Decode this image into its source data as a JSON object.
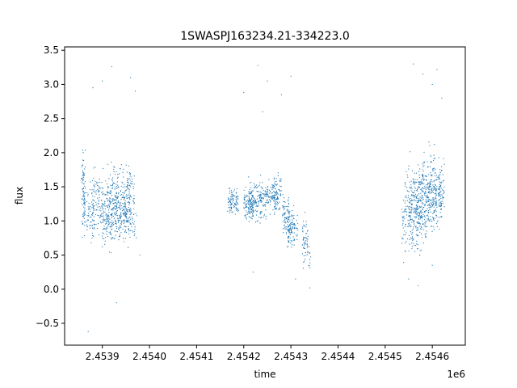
{
  "chart_data": {
    "type": "scatter",
    "title": "1SWASPJ163234.21-334223.0",
    "xlabel": "time",
    "ylabel": "flux",
    "x_offset_label": "1e6",
    "xlim": [
      2.45382,
      2.45467
    ],
    "ylim": [
      -0.82,
      3.55
    ],
    "xticks": [
      2.4539,
      2.454,
      2.4541,
      2.4542,
      2.4543,
      2.4544,
      2.4545,
      2.4546
    ],
    "xtick_labels": [
      "2.4539",
      "2.4540",
      "2.4541",
      "2.4542",
      "2.4543",
      "2.4544",
      "2.4545",
      "2.4546"
    ],
    "yticks": [
      -0.5,
      0.0,
      0.5,
      1.0,
      1.5,
      2.0,
      2.5,
      3.0,
      3.5
    ],
    "ytick_labels": [
      "−0.5",
      "0.0",
      "0.5",
      "1.0",
      "1.5",
      "2.0",
      "2.5",
      "3.0",
      "3.5"
    ],
    "grid": false,
    "legend": "none",
    "marker_color": "#1f77b4",
    "series": [
      {
        "clusters": [
          {
            "x": 2.45386,
            "y": 1.4,
            "dx": 4e-06,
            "dy": 0.55,
            "n": 90
          },
          {
            "x": 2.453875,
            "y": 1.1,
            "dx": 8e-06,
            "dy": 0.4,
            "n": 60
          },
          {
            "x": 2.45389,
            "y": 1.3,
            "dx": 1.2e-05,
            "dy": 0.45,
            "n": 100
          },
          {
            "x": 2.45391,
            "y": 1.05,
            "dx": 1e-05,
            "dy": 0.4,
            "n": 110
          },
          {
            "x": 2.45392,
            "y": 1.3,
            "dx": 1e-05,
            "dy": 0.5,
            "n": 100
          },
          {
            "x": 2.45393,
            "y": 1.1,
            "dx": 1e-05,
            "dy": 0.5,
            "n": 80
          },
          {
            "x": 2.45394,
            "y": 1.2,
            "dx": 1.2e-05,
            "dy": 0.45,
            "n": 90
          },
          {
            "x": 2.45395,
            "y": 1.2,
            "dx": 1e-05,
            "dy": 0.5,
            "n": 90
          },
          {
            "x": 2.45396,
            "y": 1.3,
            "dx": 8e-06,
            "dy": 0.45,
            "n": 80
          },
          {
            "x": 2.45397,
            "y": 0.9,
            "dx": 5e-06,
            "dy": 0.2,
            "n": 10
          },
          {
            "x": 2.45417,
            "y": 1.3,
            "dx": 5e-06,
            "dy": 0.15,
            "n": 30
          },
          {
            "x": 2.45418,
            "y": 1.3,
            "dx": 1e-05,
            "dy": 0.2,
            "n": 70
          },
          {
            "x": 2.45421,
            "y": 1.25,
            "dx": 1e-05,
            "dy": 0.25,
            "n": 110
          },
          {
            "x": 2.45422,
            "y": 1.3,
            "dx": 1e-05,
            "dy": 0.3,
            "n": 90
          },
          {
            "x": 2.45424,
            "y": 1.3,
            "dx": 1e-05,
            "dy": 0.25,
            "n": 90
          },
          {
            "x": 2.45426,
            "y": 1.35,
            "dx": 1e-05,
            "dy": 0.2,
            "n": 60
          },
          {
            "x": 2.45427,
            "y": 1.4,
            "dx": 1e-05,
            "dy": 0.25,
            "n": 90
          },
          {
            "x": 2.45429,
            "y": 1.1,
            "dx": 8e-06,
            "dy": 0.3,
            "n": 80
          },
          {
            "x": 2.4543,
            "y": 0.85,
            "dx": 8e-06,
            "dy": 0.3,
            "n": 90
          },
          {
            "x": 2.45431,
            "y": 0.9,
            "dx": 5e-06,
            "dy": 0.2,
            "n": 20
          },
          {
            "x": 2.45433,
            "y": 0.7,
            "dx": 6e-06,
            "dy": 0.3,
            "n": 60
          },
          {
            "x": 2.45434,
            "y": 0.4,
            "dx": 3e-06,
            "dy": 0.2,
            "n": 10
          },
          {
            "x": 2.45454,
            "y": 0.9,
            "dx": 5e-06,
            "dy": 0.5,
            "n": 30
          },
          {
            "x": 2.45455,
            "y": 1.3,
            "dx": 8e-06,
            "dy": 0.5,
            "n": 70
          },
          {
            "x": 2.45456,
            "y": 1.1,
            "dx": 1e-05,
            "dy": 0.6,
            "n": 120
          },
          {
            "x": 2.45457,
            "y": 1.2,
            "dx": 1e-05,
            "dy": 0.55,
            "n": 110
          },
          {
            "x": 2.45458,
            "y": 1.3,
            "dx": 1e-05,
            "dy": 0.55,
            "n": 100
          },
          {
            "x": 2.45459,
            "y": 1.4,
            "dx": 1e-05,
            "dy": 0.55,
            "n": 100
          },
          {
            "x": 2.4546,
            "y": 1.4,
            "dx": 1e-05,
            "dy": 0.5,
            "n": 100
          },
          {
            "x": 2.45461,
            "y": 1.4,
            "dx": 1e-05,
            "dy": 0.5,
            "n": 90
          },
          {
            "x": 2.45462,
            "y": 1.4,
            "dx": 6e-06,
            "dy": 0.45,
            "n": 60
          }
        ],
        "outliers": [
          [
            2.45387,
            -0.62
          ],
          [
            2.45388,
            2.95
          ],
          [
            2.4539,
            3.05
          ],
          [
            2.45392,
            3.26
          ],
          [
            2.45393,
            -0.2
          ],
          [
            2.45396,
            3.1
          ],
          [
            2.45397,
            2.9
          ],
          [
            2.45398,
            0.5
          ],
          [
            2.4542,
            2.88
          ],
          [
            2.45423,
            3.28
          ],
          [
            2.45424,
            2.6
          ],
          [
            2.45425,
            3.05
          ],
          [
            2.45422,
            0.25
          ],
          [
            2.45428,
            2.85
          ],
          [
            2.4543,
            3.12
          ],
          [
            2.45431,
            0.15
          ],
          [
            2.45434,
            0.02
          ],
          [
            2.45455,
            0.15
          ],
          [
            2.45456,
            3.3
          ],
          [
            2.45458,
            3.15
          ],
          [
            2.4546,
            3.0
          ],
          [
            2.45461,
            3.22
          ],
          [
            2.45457,
            0.05
          ],
          [
            2.4546,
            0.35
          ],
          [
            2.45462,
            2.8
          ]
        ]
      }
    ]
  }
}
